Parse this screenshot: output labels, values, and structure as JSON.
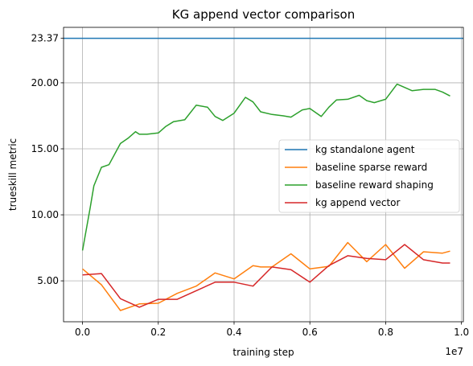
{
  "chart_data": {
    "type": "line",
    "title": "KG append vector comparison",
    "xlabel": "training step",
    "ylabel": "trueskill metric",
    "x_offset_label": "1e7",
    "xlim": [
      -0.05,
      1.005
    ],
    "ylim": [
      1.9,
      24.2
    ],
    "x_ticks": [
      0.0,
      0.2,
      0.4,
      0.6,
      0.8,
      1.0
    ],
    "x_tick_labels": [
      "0.0",
      "0.2",
      "0.4",
      "0.6",
      "0.8",
      "1.0"
    ],
    "y_ticks": [
      5.0,
      10.0,
      15.0,
      20.0,
      23.37
    ],
    "y_tick_labels": [
      "5.00",
      "10.00",
      "15.00",
      "20.00",
      "23.37"
    ],
    "grid": true,
    "legend_position": "center-right",
    "series": [
      {
        "name": "kg standalone agent",
        "color": "#1f77b4",
        "kind": "hline",
        "y": 23.37
      },
      {
        "name": "baseline sparse reward",
        "color": "#ff7f0e",
        "x": [
          0.0,
          0.05,
          0.1,
          0.15,
          0.2,
          0.25,
          0.3,
          0.35,
          0.4,
          0.45,
          0.47,
          0.5,
          0.55,
          0.6,
          0.65,
          0.7,
          0.75,
          0.8,
          0.85,
          0.9,
          0.95,
          0.97
        ],
        "y": [
          5.9,
          4.7,
          2.75,
          3.25,
          3.3,
          4.05,
          4.6,
          5.6,
          5.15,
          6.15,
          6.05,
          6.05,
          7.05,
          5.9,
          6.1,
          7.9,
          6.45,
          7.75,
          5.95,
          7.2,
          7.1,
          7.25
        ]
      },
      {
        "name": "baseline reward shaping",
        "color": "#2ca02c",
        "x": [
          0.0,
          0.02,
          0.03,
          0.05,
          0.07,
          0.1,
          0.12,
          0.14,
          0.15,
          0.17,
          0.2,
          0.22,
          0.24,
          0.25,
          0.27,
          0.3,
          0.33,
          0.35,
          0.37,
          0.4,
          0.43,
          0.45,
          0.47,
          0.5,
          0.53,
          0.55,
          0.58,
          0.6,
          0.63,
          0.65,
          0.67,
          0.7,
          0.73,
          0.75,
          0.77,
          0.8,
          0.83,
          0.85,
          0.87,
          0.9,
          0.93,
          0.95,
          0.97
        ],
        "y": [
          7.3,
          10.5,
          12.2,
          13.6,
          13.8,
          15.4,
          15.8,
          16.3,
          16.1,
          16.1,
          16.2,
          16.7,
          17.05,
          17.1,
          17.2,
          18.3,
          18.15,
          17.45,
          17.15,
          17.7,
          18.9,
          18.55,
          17.8,
          17.6,
          17.5,
          17.4,
          17.95,
          18.05,
          17.45,
          18.15,
          18.7,
          18.75,
          19.05,
          18.65,
          18.5,
          18.75,
          19.9,
          19.65,
          19.4,
          19.5,
          19.5,
          19.3,
          19.0
        ]
      },
      {
        "name": "kg append vector",
        "color": "#d62728",
        "x": [
          0.0,
          0.05,
          0.1,
          0.15,
          0.2,
          0.25,
          0.3,
          0.35,
          0.4,
          0.45,
          0.5,
          0.55,
          0.6,
          0.65,
          0.7,
          0.75,
          0.8,
          0.85,
          0.9,
          0.95,
          0.97
        ],
        "y": [
          5.45,
          5.55,
          3.65,
          3.0,
          3.6,
          3.6,
          4.25,
          4.9,
          4.9,
          4.6,
          6.05,
          5.85,
          4.9,
          6.15,
          6.9,
          6.7,
          6.6,
          7.75,
          6.6,
          6.35,
          6.35
        ]
      }
    ]
  }
}
